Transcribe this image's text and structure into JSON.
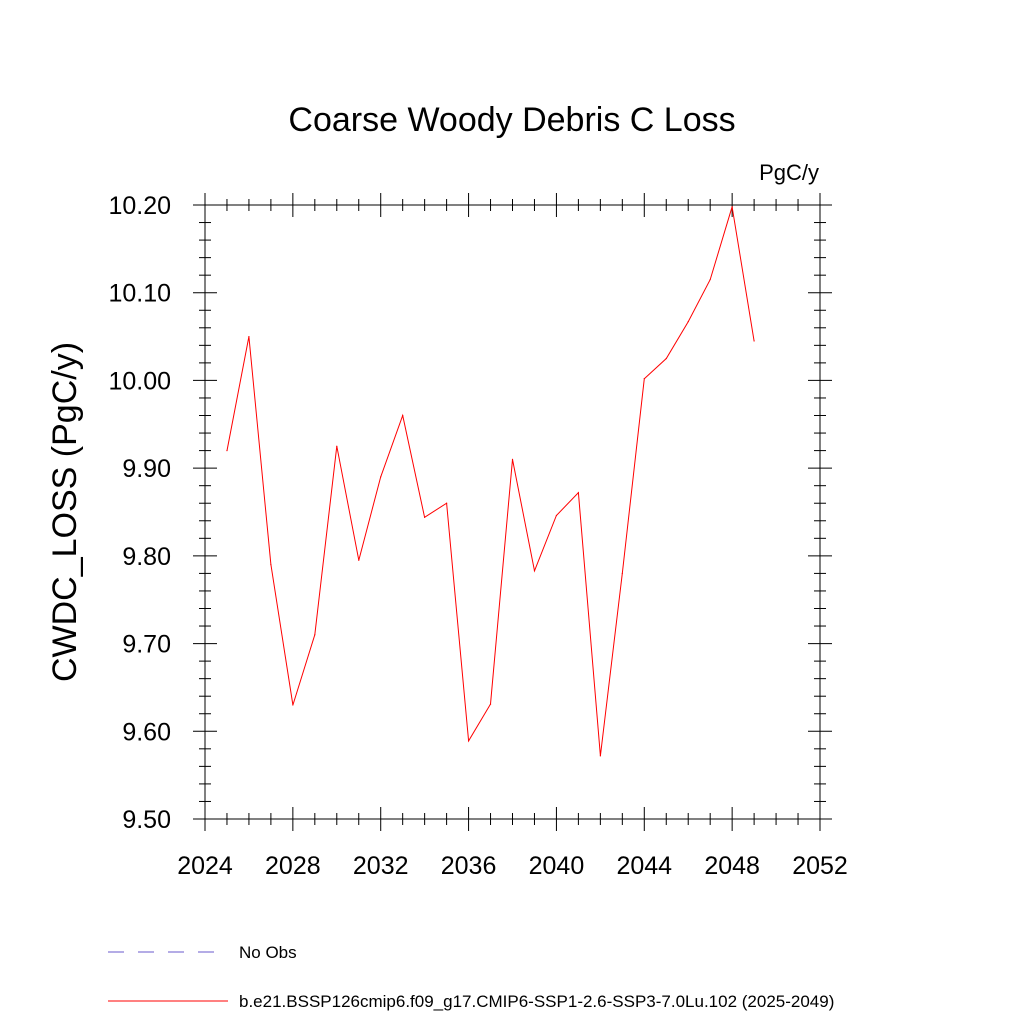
{
  "chart_data": {
    "type": "line",
    "title": "Coarse Woody Debris C Loss",
    "units": "PgC/y",
    "ylabel": "CWDC_LOSS  (PgC/y)",
    "xlabel": "",
    "xlim": [
      2024,
      2052
    ],
    "ylim": [
      9.5,
      10.2
    ],
    "x_ticks": [
      2024,
      2028,
      2032,
      2036,
      2040,
      2044,
      2048,
      2052
    ],
    "x_tick_labels": [
      "2024",
      "2028",
      "2032",
      "2036",
      "2040",
      "2044",
      "2048",
      "2052"
    ],
    "y_ticks": [
      9.5,
      9.6,
      9.7,
      9.8,
      9.9,
      10.0,
      10.1,
      10.2
    ],
    "y_tick_labels": [
      "9.50",
      "9.60",
      "9.70",
      "9.80",
      "9.90",
      "10.00",
      "10.10",
      "10.20"
    ],
    "series": [
      {
        "name": "b.e21.BSSP126cmip6.f09_g17.CMIP6-SSP1-2.6-SSP3-7.0Lu.102 (2025-2049)",
        "color": "#ff0000",
        "style": "solid",
        "x": [
          2025,
          2026,
          2027,
          2028,
          2029,
          2030,
          2031,
          2032,
          2033,
          2034,
          2035,
          2036,
          2037,
          2038,
          2039,
          2040,
          2041,
          2042,
          2043,
          2044,
          2045,
          2046,
          2047,
          2048,
          2049
        ],
        "values": [
          9.92,
          10.05,
          9.79,
          9.63,
          9.71,
          9.925,
          9.795,
          9.89,
          9.96,
          9.844,
          9.86,
          9.589,
          9.631,
          9.91,
          9.783,
          9.846,
          9.872,
          9.572,
          9.78,
          10.002,
          10.025,
          10.067,
          10.115,
          10.198,
          10.045
        ]
      }
    ],
    "legend": [
      {
        "label": "No Obs",
        "color": "#6a5acd",
        "style": "dashed"
      },
      {
        "label": "b.e21.BSSP126cmip6.f09_g17.CMIP6-SSP1-2.6-SSP3-7.0Lu.102 (2025-2049)",
        "color": "#ff0000",
        "style": "solid"
      }
    ],
    "legend_position": "bottom-left",
    "grid": false
  }
}
